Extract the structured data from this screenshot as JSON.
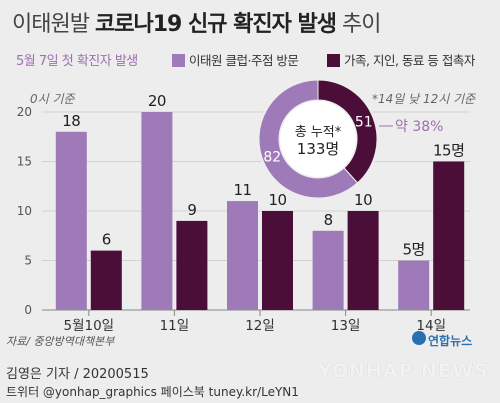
{
  "header": {
    "title_prefix": "이태원발 ",
    "title_bold": "코로나19 신규 확진자 발생",
    "title_suffix": " 추이",
    "subtitle": "5월 7일 첫 확진자 발생",
    "unit": "0시 기준",
    "note": "*14일 낮 12시 기준"
  },
  "colors": {
    "club": "#9e7ab8",
    "contact": "#4a0e38",
    "accent": "#9e6fb0"
  },
  "chart_data": {
    "type": "bar",
    "categories": [
      "5월10일",
      "11일",
      "12일",
      "13일",
      "14일"
    ],
    "series": [
      {
        "name": "이태원 클럽·주점 방문",
        "values": [
          18,
          20,
          11,
          8,
          5
        ],
        "labels": [
          "18",
          "20",
          "11",
          "8",
          "5명"
        ]
      },
      {
        "name": "가족, 지인, 동료 등 접촉자",
        "values": [
          6,
          9,
          10,
          10,
          15
        ],
        "labels": [
          "6",
          "9",
          "10",
          "10",
          "15명"
        ]
      }
    ],
    "ylim": [
      0,
      20
    ],
    "yticks": [
      0,
      5,
      10,
      15,
      20
    ],
    "grid": true,
    "legend_position": "top"
  },
  "donut": {
    "total_label": "총 누적*",
    "total_value": "133명",
    "slices": [
      {
        "name": "이태원 클럽·주점 방문",
        "value": 82,
        "label": "82"
      },
      {
        "name": "가족, 지인, 동료 등 접촉자",
        "value": 51,
        "label": "51"
      }
    ],
    "callout": "약 38%"
  },
  "footer": {
    "source": "자료/ 중앙방역대책본부",
    "credit_line1": "김영은 기자 / 20200515",
    "credit_line2": "트위터 @yonhap_graphics  페이스북 tuney.kr/LeYN1",
    "agency": "연합뉴스",
    "watermark": "YONHAP NEWS"
  }
}
